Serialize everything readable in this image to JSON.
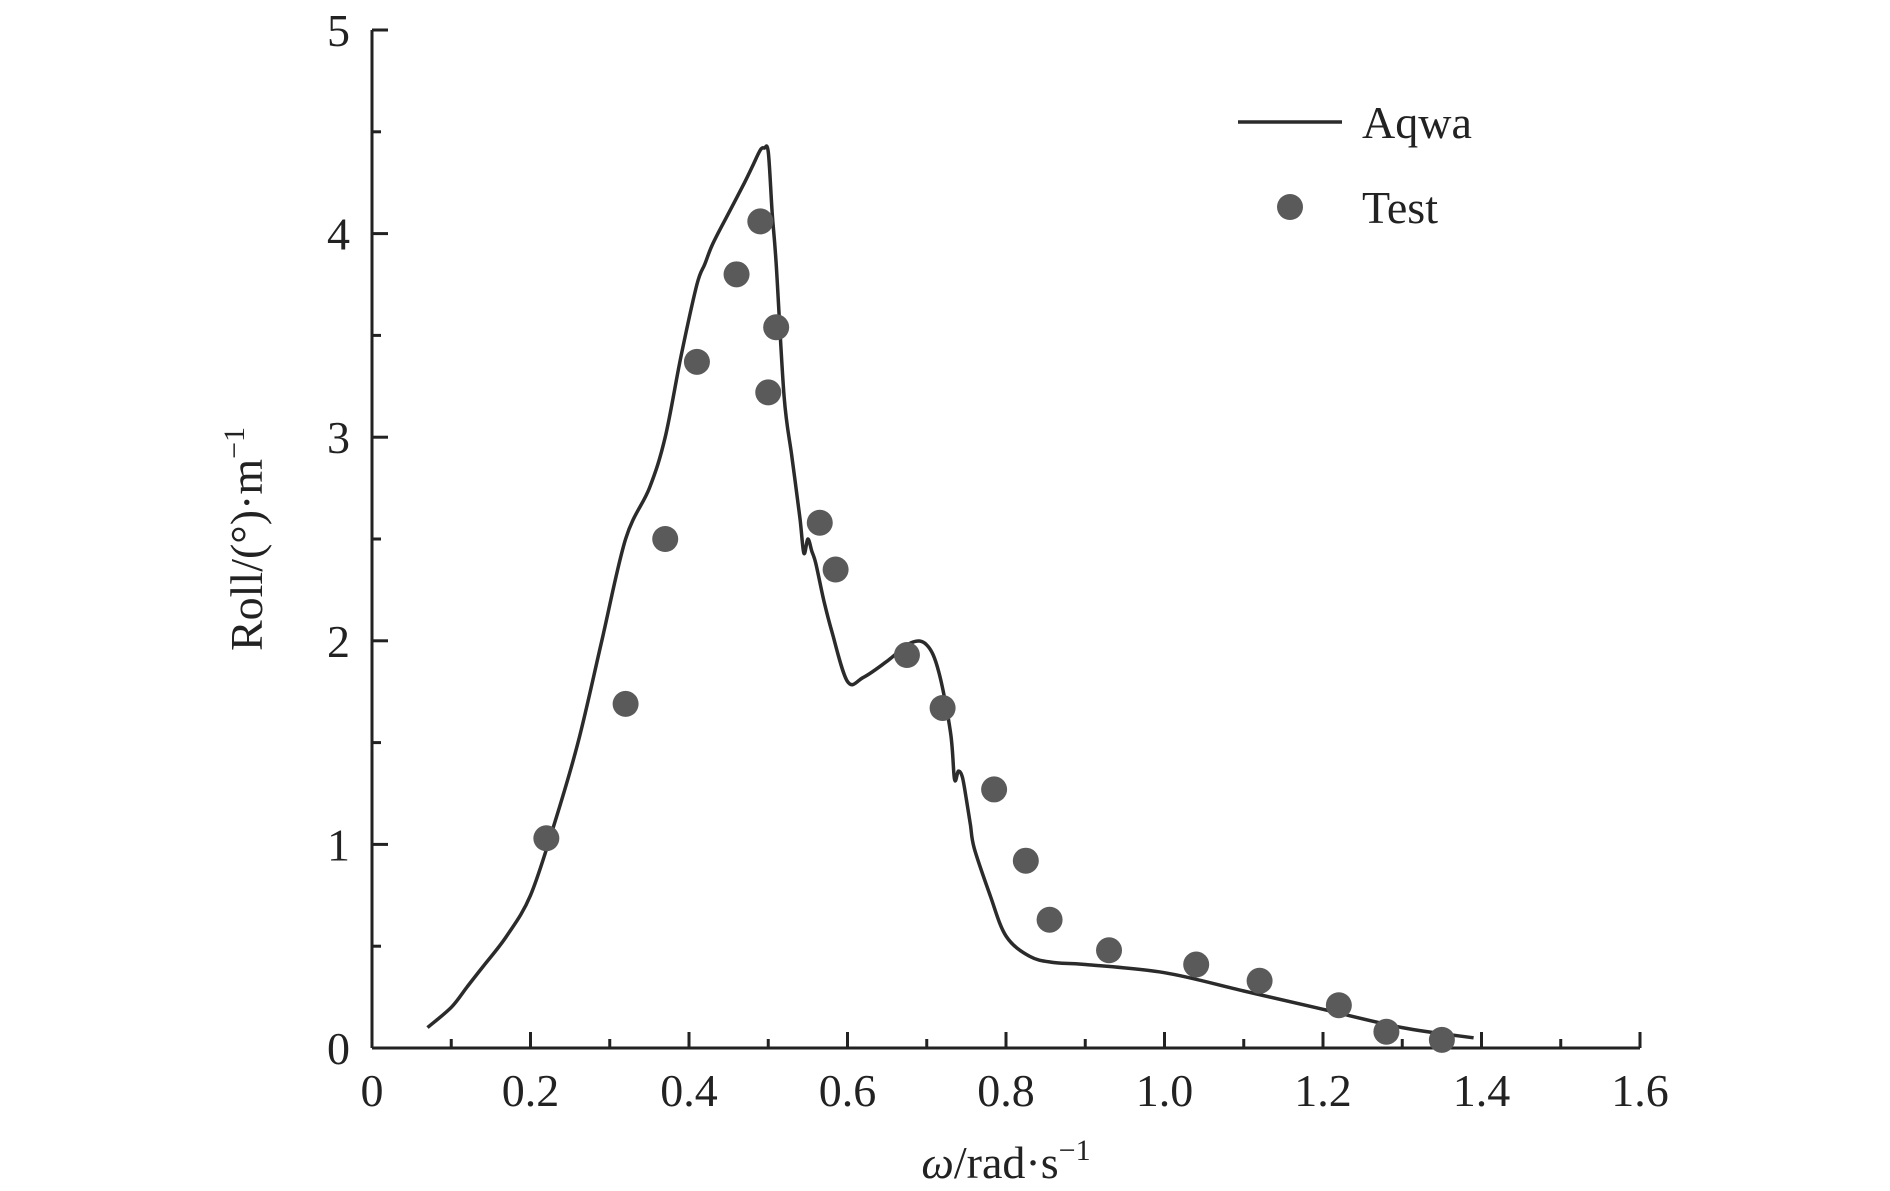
{
  "chart_data": {
    "type": "line",
    "title": "",
    "xlabel": {
      "symbol": "ω",
      "unit": "/rad·s",
      "sup": "−1"
    },
    "ylabel": {
      "text": "Roll/(°)·m",
      "sup": "−1"
    },
    "xlim": [
      0,
      1.6
    ],
    "ylim": [
      0,
      5
    ],
    "x_ticks": [
      "0",
      "0.2",
      "0.4",
      "0.6",
      "0.8",
      "1.0",
      "1.2",
      "1.4",
      "1.6"
    ],
    "y_ticks": [
      "0",
      "1",
      "2",
      "3",
      "4",
      "5"
    ],
    "grid": false,
    "legend_position": "top-right",
    "colors": {
      "line": "#2b2b2b",
      "marker": "#5a5a5a",
      "axis": "#222222"
    },
    "series": [
      {
        "name": "Aqwa",
        "kind": "line",
        "x": [
          0.07,
          0.1,
          0.12,
          0.14,
          0.17,
          0.2,
          0.23,
          0.26,
          0.29,
          0.32,
          0.35,
          0.37,
          0.39,
          0.41,
          0.42,
          0.43,
          0.45,
          0.47,
          0.48,
          0.49,
          0.495,
          0.5,
          0.505,
          0.51,
          0.52,
          0.53,
          0.54,
          0.545,
          0.55,
          0.555,
          0.56,
          0.57,
          0.58,
          0.6,
          0.62,
          0.65,
          0.68,
          0.7,
          0.715,
          0.73,
          0.735,
          0.74,
          0.745,
          0.75,
          0.755,
          0.76,
          0.78,
          0.8,
          0.83,
          0.86,
          0.9,
          1.0,
          1.1,
          1.2,
          1.3,
          1.39
        ],
        "y": [
          0.1,
          0.2,
          0.3,
          0.4,
          0.55,
          0.75,
          1.1,
          1.5,
          2.0,
          2.5,
          2.75,
          3.0,
          3.4,
          3.75,
          3.85,
          3.95,
          4.1,
          4.25,
          4.33,
          4.41,
          4.42,
          4.4,
          4.1,
          3.85,
          3.2,
          2.9,
          2.6,
          2.43,
          2.5,
          2.44,
          2.38,
          2.2,
          2.05,
          1.8,
          1.82,
          1.9,
          1.99,
          1.98,
          1.85,
          1.55,
          1.32,
          1.36,
          1.33,
          1.22,
          1.1,
          0.98,
          0.75,
          0.55,
          0.45,
          0.42,
          0.41,
          0.37,
          0.28,
          0.19,
          0.1,
          0.05
        ]
      },
      {
        "name": "Test",
        "kind": "scatter",
        "x": [
          0.22,
          0.32,
          0.37,
          0.41,
          0.46,
          0.49,
          0.5,
          0.51,
          0.565,
          0.585,
          0.675,
          0.72,
          0.785,
          0.825,
          0.855,
          0.93,
          1.04,
          1.12,
          1.22,
          1.28,
          1.35
        ],
        "y": [
          1.03,
          1.69,
          2.5,
          3.37,
          3.8,
          4.06,
          3.22,
          3.54,
          2.58,
          2.35,
          1.93,
          1.67,
          1.27,
          0.92,
          0.63,
          0.48,
          0.41,
          0.33,
          0.21,
          0.08,
          0.04
        ]
      }
    ]
  }
}
